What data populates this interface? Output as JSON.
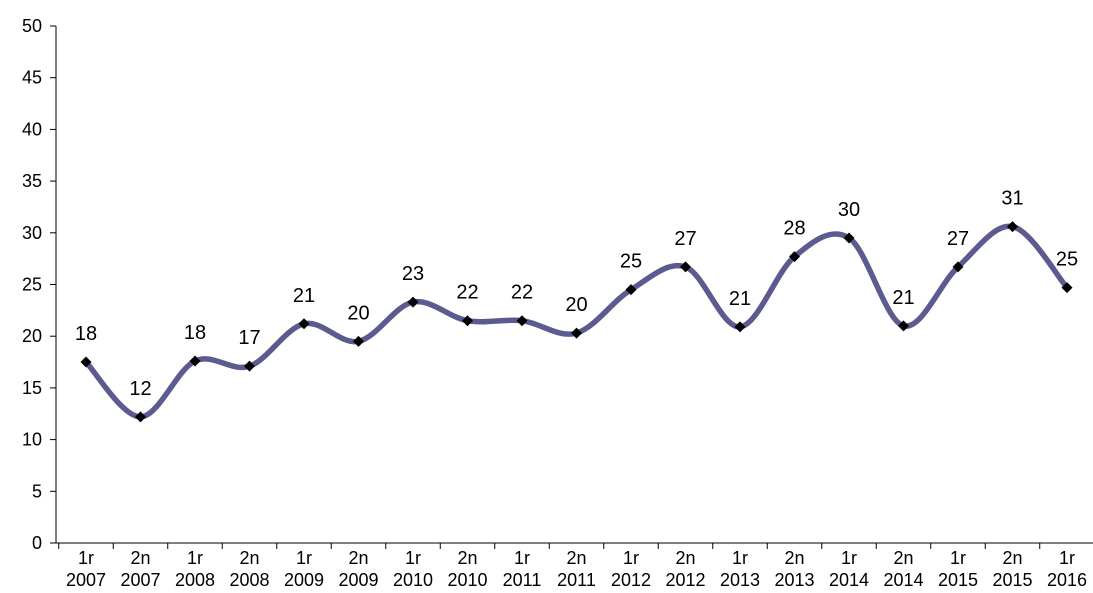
{
  "chart_data": {
    "type": "line",
    "title": "",
    "xlabel": "",
    "ylabel": "",
    "categories": [
      [
        "1r",
        "2007"
      ],
      [
        "2n",
        "2007"
      ],
      [
        "1r",
        "2008"
      ],
      [
        "2n",
        "2008"
      ],
      [
        "1r",
        "2009"
      ],
      [
        "2n",
        "2009"
      ],
      [
        "1r",
        "2010"
      ],
      [
        "2n",
        "2010"
      ],
      [
        "1r",
        "2011"
      ],
      [
        "2n",
        "2011"
      ],
      [
        "1r",
        "2012"
      ],
      [
        "2n",
        "2012"
      ],
      [
        "1r",
        "2013"
      ],
      [
        "2n",
        "2013"
      ],
      [
        "1r",
        "2014"
      ],
      [
        "2n",
        "2014"
      ],
      [
        "1r",
        "2015"
      ],
      [
        "2n",
        "2015"
      ],
      [
        "1r",
        "2016"
      ]
    ],
    "series": [
      {
        "values": [
          17.5,
          12.2,
          17.6,
          17.1,
          21.2,
          19.5,
          23.3,
          21.5,
          21.5,
          20.3,
          24.5,
          26.7,
          20.9,
          27.7,
          29.5,
          21.0,
          26.7,
          30.6,
          24.7
        ],
        "labels": [
          "18",
          "12",
          "18",
          "17",
          "21",
          "20",
          "23",
          "22",
          "22",
          "20",
          "25",
          "27",
          "21",
          "28",
          "30",
          "21",
          "27",
          "31",
          "25"
        ]
      }
    ],
    "ylim": [
      0,
      50
    ],
    "yticks": [
      "0",
      "5",
      "10",
      "15",
      "20",
      "25",
      "30",
      "35",
      "40",
      "45",
      "50"
    ],
    "grid": false,
    "legend": "none",
    "line_color": "#5b5b8f",
    "marker": "diamond",
    "marker_color": "#000000",
    "smooth": true
  }
}
